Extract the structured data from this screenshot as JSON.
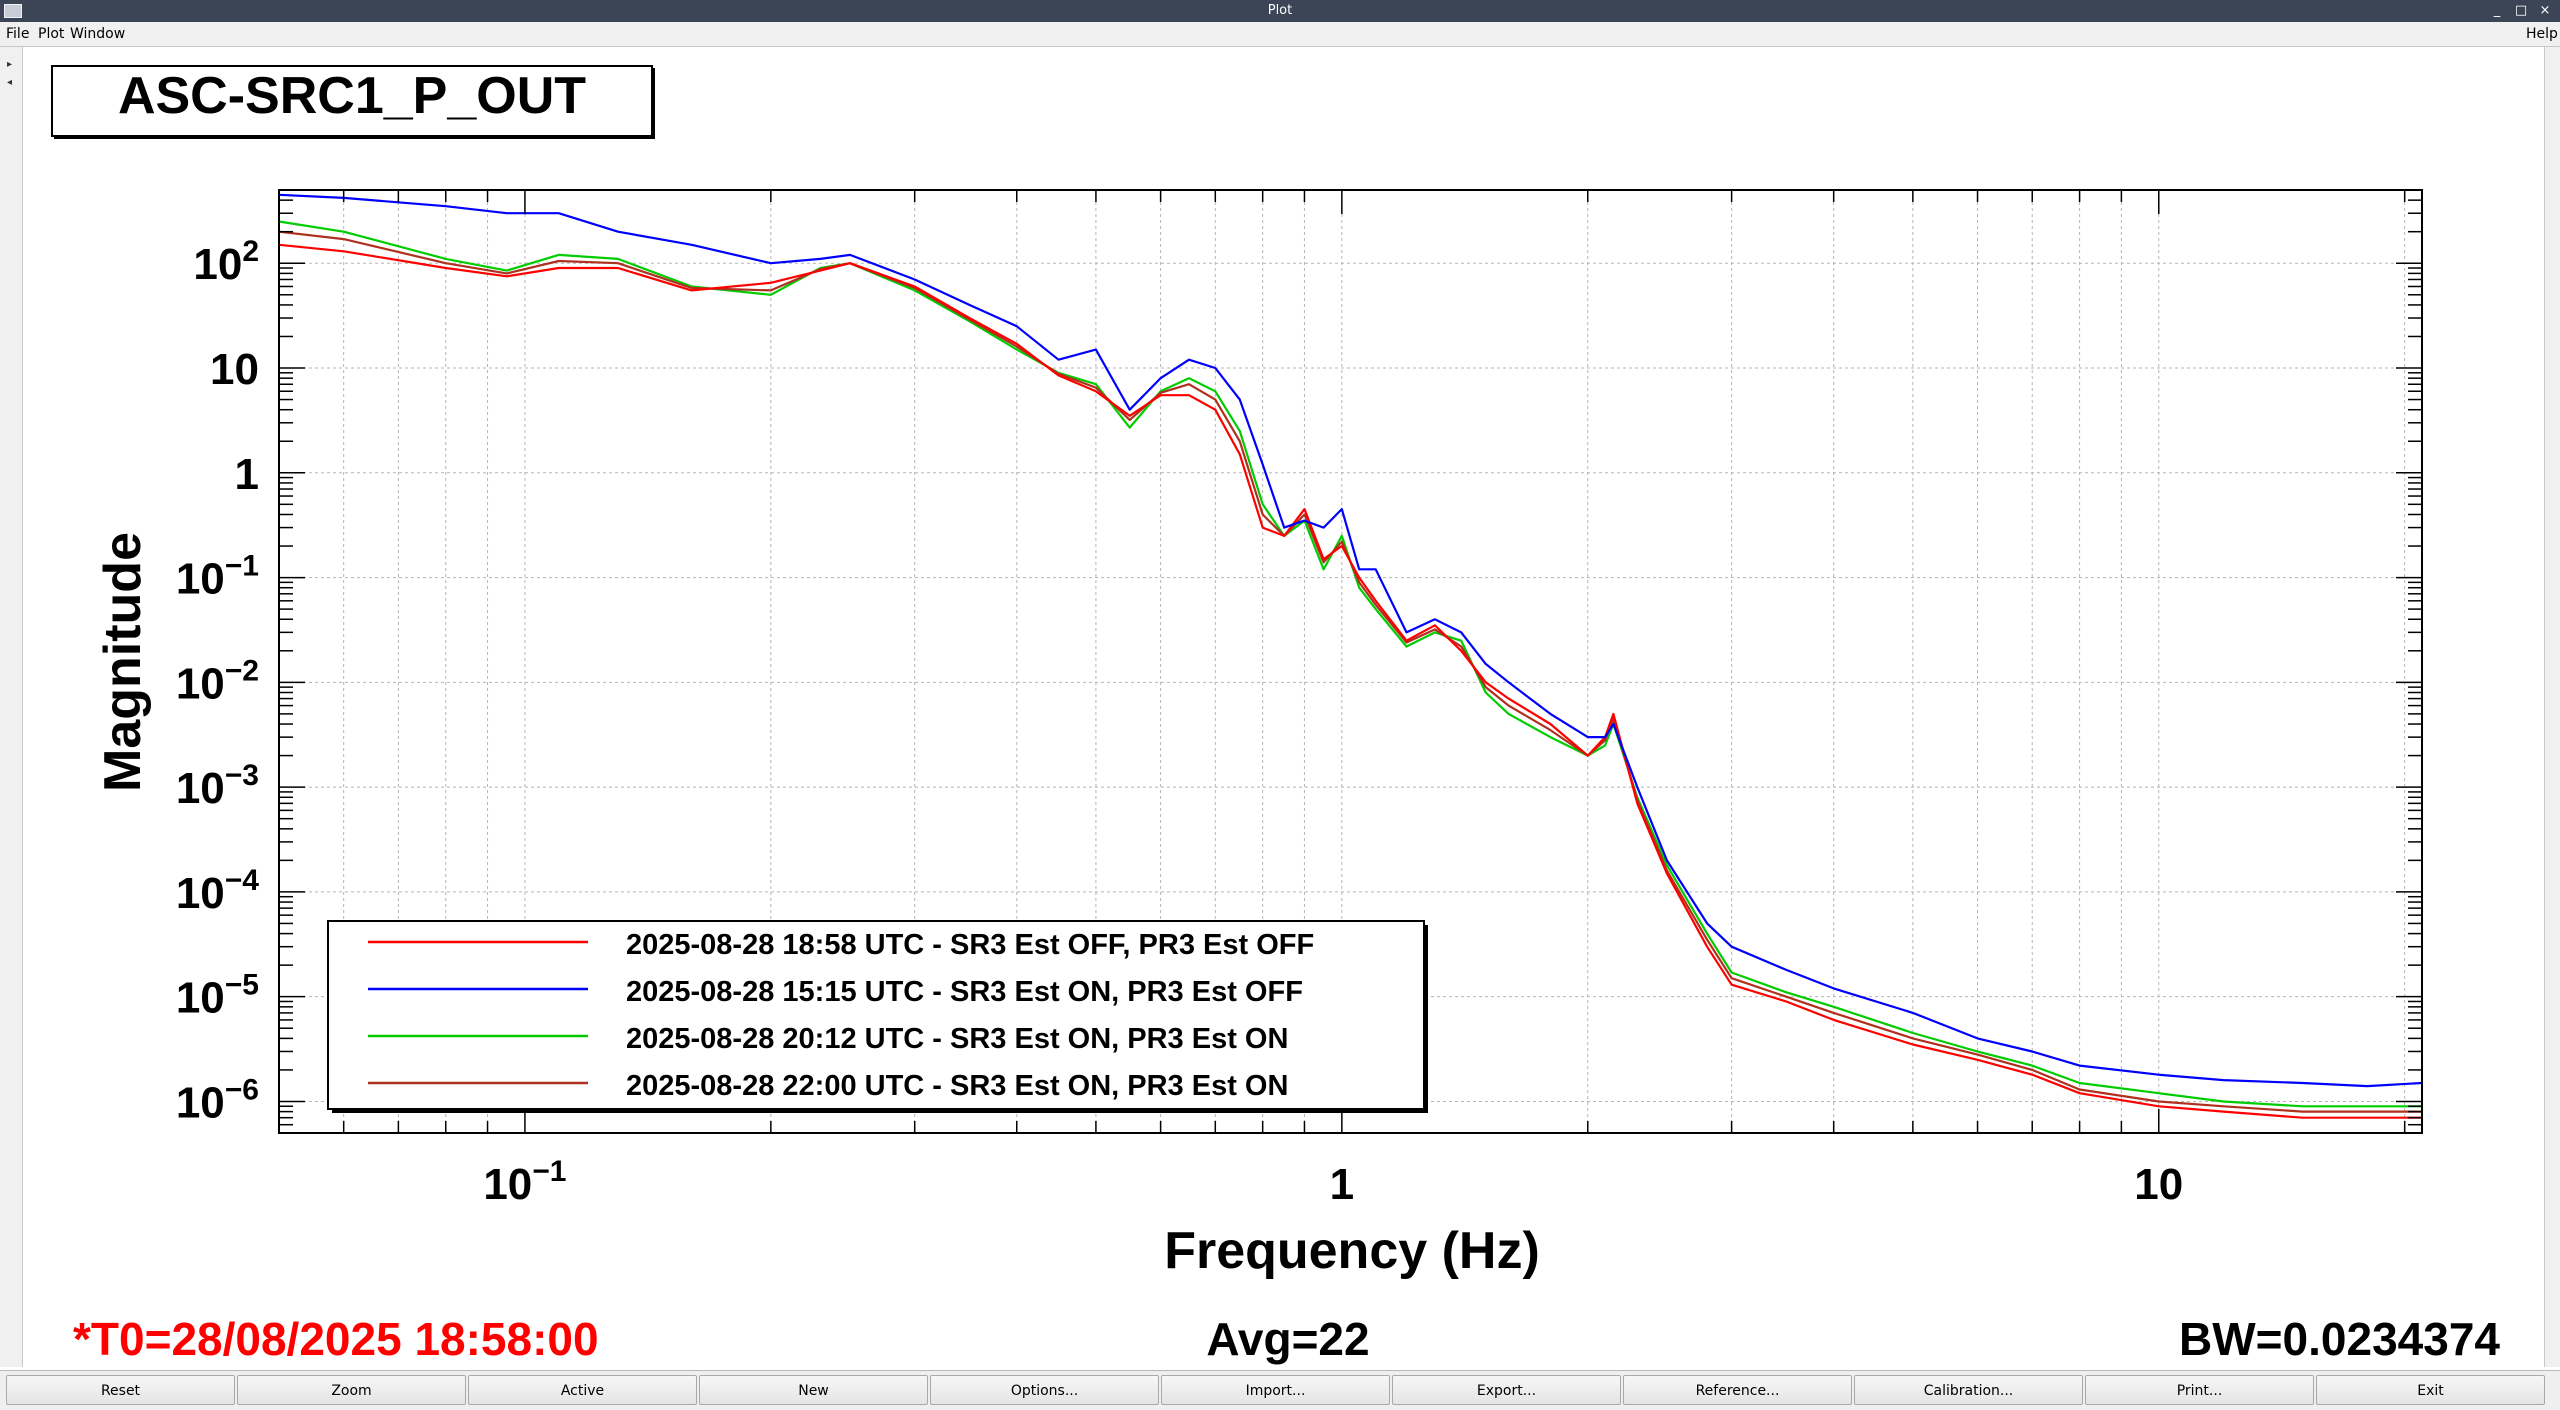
{
  "window": {
    "title": "Plot",
    "controls": [
      "_",
      "□",
      "×"
    ]
  },
  "menu": {
    "file": "File",
    "plot": "Plot",
    "window": "Window",
    "help": "Help"
  },
  "plot_title": "ASC-SRC1_P_OUT",
  "status": {
    "t0": "*T0=28/08/2025 18:58:00",
    "avg": "Avg=22",
    "bw": "BW=0.0234374",
    "t0_color": "#ff0000"
  },
  "toolbar": {
    "buttons": [
      "Reset",
      "Zoom",
      "Active",
      "New",
      "Options...",
      "Import...",
      "Export...",
      "Reference...",
      "Calibration...",
      "Print...",
      "Exit"
    ]
  },
  "chart_data": {
    "type": "line",
    "title": "ASC-SRC1_P_OUT",
    "xlabel": "Frequency (Hz)",
    "ylabel": "Magnitude",
    "xscale": "log",
    "yscale": "log",
    "xlim": [
      0.05,
      21
    ],
    "ylim": [
      5e-07,
      500
    ],
    "grid": true,
    "legend_position": "bottom-left",
    "y_ticks": [
      {
        "value": 100,
        "base": "10",
        "exp": "2"
      },
      {
        "value": 10,
        "base": "10",
        "exp": ""
      },
      {
        "value": 1,
        "base": "1",
        "exp": ""
      },
      {
        "value": 0.1,
        "base": "10",
        "exp": "−1"
      },
      {
        "value": 0.01,
        "base": "10",
        "exp": "−2"
      },
      {
        "value": 0.001,
        "base": "10",
        "exp": "−3"
      },
      {
        "value": 0.0001,
        "base": "10",
        "exp": "−4"
      },
      {
        "value": 1e-05,
        "base": "10",
        "exp": "−5"
      },
      {
        "value": 1e-06,
        "base": "10",
        "exp": "−6"
      }
    ],
    "x_ticks": [
      {
        "value": 0.1,
        "base": "10",
        "exp": "−1"
      },
      {
        "value": 1,
        "base": "1",
        "exp": ""
      },
      {
        "value": 10,
        "base": "10",
        "exp": ""
      }
    ],
    "series": [
      {
        "name": "2025-08-28 18:58 UTC - SR3 Est OFF, PR3 Est OFF",
        "color": "#ff0000",
        "x": [
          0.05,
          0.06,
          0.08,
          0.095,
          0.11,
          0.13,
          0.16,
          0.2,
          0.23,
          0.25,
          0.3,
          0.35,
          0.4,
          0.45,
          0.5,
          0.55,
          0.6,
          0.65,
          0.7,
          0.75,
          0.8,
          0.85,
          0.9,
          0.95,
          1.0,
          1.05,
          1.1,
          1.2,
          1.3,
          1.4,
          1.5,
          1.6,
          1.8,
          2.0,
          2.1,
          2.15,
          2.3,
          2.5,
          2.8,
          3.0,
          3.5,
          4,
          5,
          6,
          7,
          8,
          10,
          12,
          15,
          18,
          21
        ],
        "y": [
          150,
          130,
          90,
          75,
          90,
          90,
          55,
          65,
          85,
          100,
          60,
          30,
          17,
          8.5,
          6,
          3.5,
          5.5,
          5.5,
          4,
          1.5,
          0.3,
          0.25,
          0.45,
          0.15,
          0.2,
          0.1,
          0.06,
          0.025,
          0.035,
          0.02,
          0.01,
          0.007,
          0.004,
          0.002,
          0.003,
          0.005,
          0.0007,
          0.00015,
          3e-05,
          1.3e-05,
          9e-06,
          6e-06,
          3.5e-06,
          2.5e-06,
          1.8e-06,
          1.2e-06,
          9e-07,
          8e-07,
          7e-07,
          7e-07,
          7e-07
        ]
      },
      {
        "name": "2025-08-28 15:15 UTC - SR3 Est ON, PR3 Est OFF",
        "color": "#0000ff",
        "x": [
          0.05,
          0.06,
          0.08,
          0.095,
          0.11,
          0.13,
          0.16,
          0.2,
          0.23,
          0.25,
          0.3,
          0.35,
          0.4,
          0.45,
          0.5,
          0.55,
          0.6,
          0.65,
          0.7,
          0.75,
          0.8,
          0.85,
          0.9,
          0.95,
          1.0,
          1.05,
          1.1,
          1.2,
          1.3,
          1.4,
          1.5,
          1.6,
          1.8,
          2.0,
          2.1,
          2.15,
          2.3,
          2.5,
          2.8,
          3.0,
          3.5,
          4,
          5,
          6,
          7,
          8,
          10,
          12,
          15,
          18,
          21
        ],
        "y": [
          450,
          420,
          350,
          300,
          300,
          200,
          150,
          100,
          110,
          120,
          70,
          40,
          25,
          12,
          15,
          4,
          8,
          12,
          10,
          5,
          1.2,
          0.3,
          0.35,
          0.3,
          0.45,
          0.12,
          0.12,
          0.03,
          0.04,
          0.03,
          0.015,
          0.01,
          0.005,
          0.003,
          0.003,
          0.004,
          0.001,
          0.0002,
          5e-05,
          3e-05,
          1.8e-05,
          1.2e-05,
          7e-06,
          4e-06,
          3e-06,
          2.2e-06,
          1.8e-06,
          1.6e-06,
          1.5e-06,
          1.4e-06,
          1.5e-06
        ]
      },
      {
        "name": "2025-08-28 20:12 UTC - SR3 Est ON, PR3 Est ON",
        "color": "#00cc00",
        "x": [
          0.05,
          0.06,
          0.08,
          0.095,
          0.11,
          0.13,
          0.16,
          0.2,
          0.23,
          0.25,
          0.3,
          0.35,
          0.4,
          0.45,
          0.5,
          0.55,
          0.6,
          0.65,
          0.7,
          0.75,
          0.8,
          0.85,
          0.9,
          0.95,
          1.0,
          1.05,
          1.1,
          1.2,
          1.3,
          1.4,
          1.5,
          1.6,
          1.8,
          2.0,
          2.1,
          2.15,
          2.3,
          2.5,
          2.8,
          3.0,
          3.5,
          4,
          5,
          6,
          7,
          8,
          10,
          12,
          15,
          18,
          21
        ],
        "y": [
          250,
          200,
          110,
          85,
          120,
          110,
          60,
          50,
          90,
          100,
          55,
          28,
          15,
          9,
          7,
          2.7,
          6,
          8,
          6,
          2.5,
          0.5,
          0.25,
          0.35,
          0.12,
          0.25,
          0.08,
          0.05,
          0.022,
          0.03,
          0.025,
          0.008,
          0.005,
          0.003,
          0.002,
          0.0025,
          0.004,
          0.0008,
          0.00018,
          4e-05,
          1.7e-05,
          1.1e-05,
          8e-06,
          4.5e-06,
          3e-06,
          2.2e-06,
          1.5e-06,
          1.2e-06,
          1e-06,
          9e-07,
          9e-07,
          9e-07
        ]
      },
      {
        "name": "2025-08-28 22:00 UTC - SR3 Est ON, PR3 Est ON",
        "color": "#b03020",
        "x": [
          0.05,
          0.06,
          0.08,
          0.095,
          0.11,
          0.13,
          0.16,
          0.2,
          0.23,
          0.25,
          0.3,
          0.35,
          0.4,
          0.45,
          0.5,
          0.55,
          0.6,
          0.65,
          0.7,
          0.75,
          0.8,
          0.85,
          0.9,
          0.95,
          1.0,
          1.05,
          1.1,
          1.2,
          1.3,
          1.4,
          1.5,
          1.6,
          1.8,
          2.0,
          2.1,
          2.15,
          2.3,
          2.5,
          2.8,
          3.0,
          3.5,
          4,
          5,
          6,
          7,
          8,
          10,
          12,
          15,
          18,
          21
        ],
        "y": [
          200,
          170,
          100,
          80,
          105,
          100,
          58,
          55,
          88,
          100,
          58,
          29,
          16,
          8.8,
          6.5,
          3.2,
          5.8,
          7,
          5,
          2,
          0.4,
          0.25,
          0.4,
          0.14,
          0.22,
          0.09,
          0.055,
          0.024,
          0.032,
          0.022,
          0.009,
          0.006,
          0.0035,
          0.002,
          0.0028,
          0.0045,
          0.00075,
          0.00016,
          3.5e-05,
          1.5e-05,
          1e-05,
          7e-06,
          4e-06,
          2.8e-06,
          2e-06,
          1.3e-06,
          1e-06,
          9e-07,
          8e-07,
          8e-07,
          8e-07
        ]
      }
    ]
  }
}
